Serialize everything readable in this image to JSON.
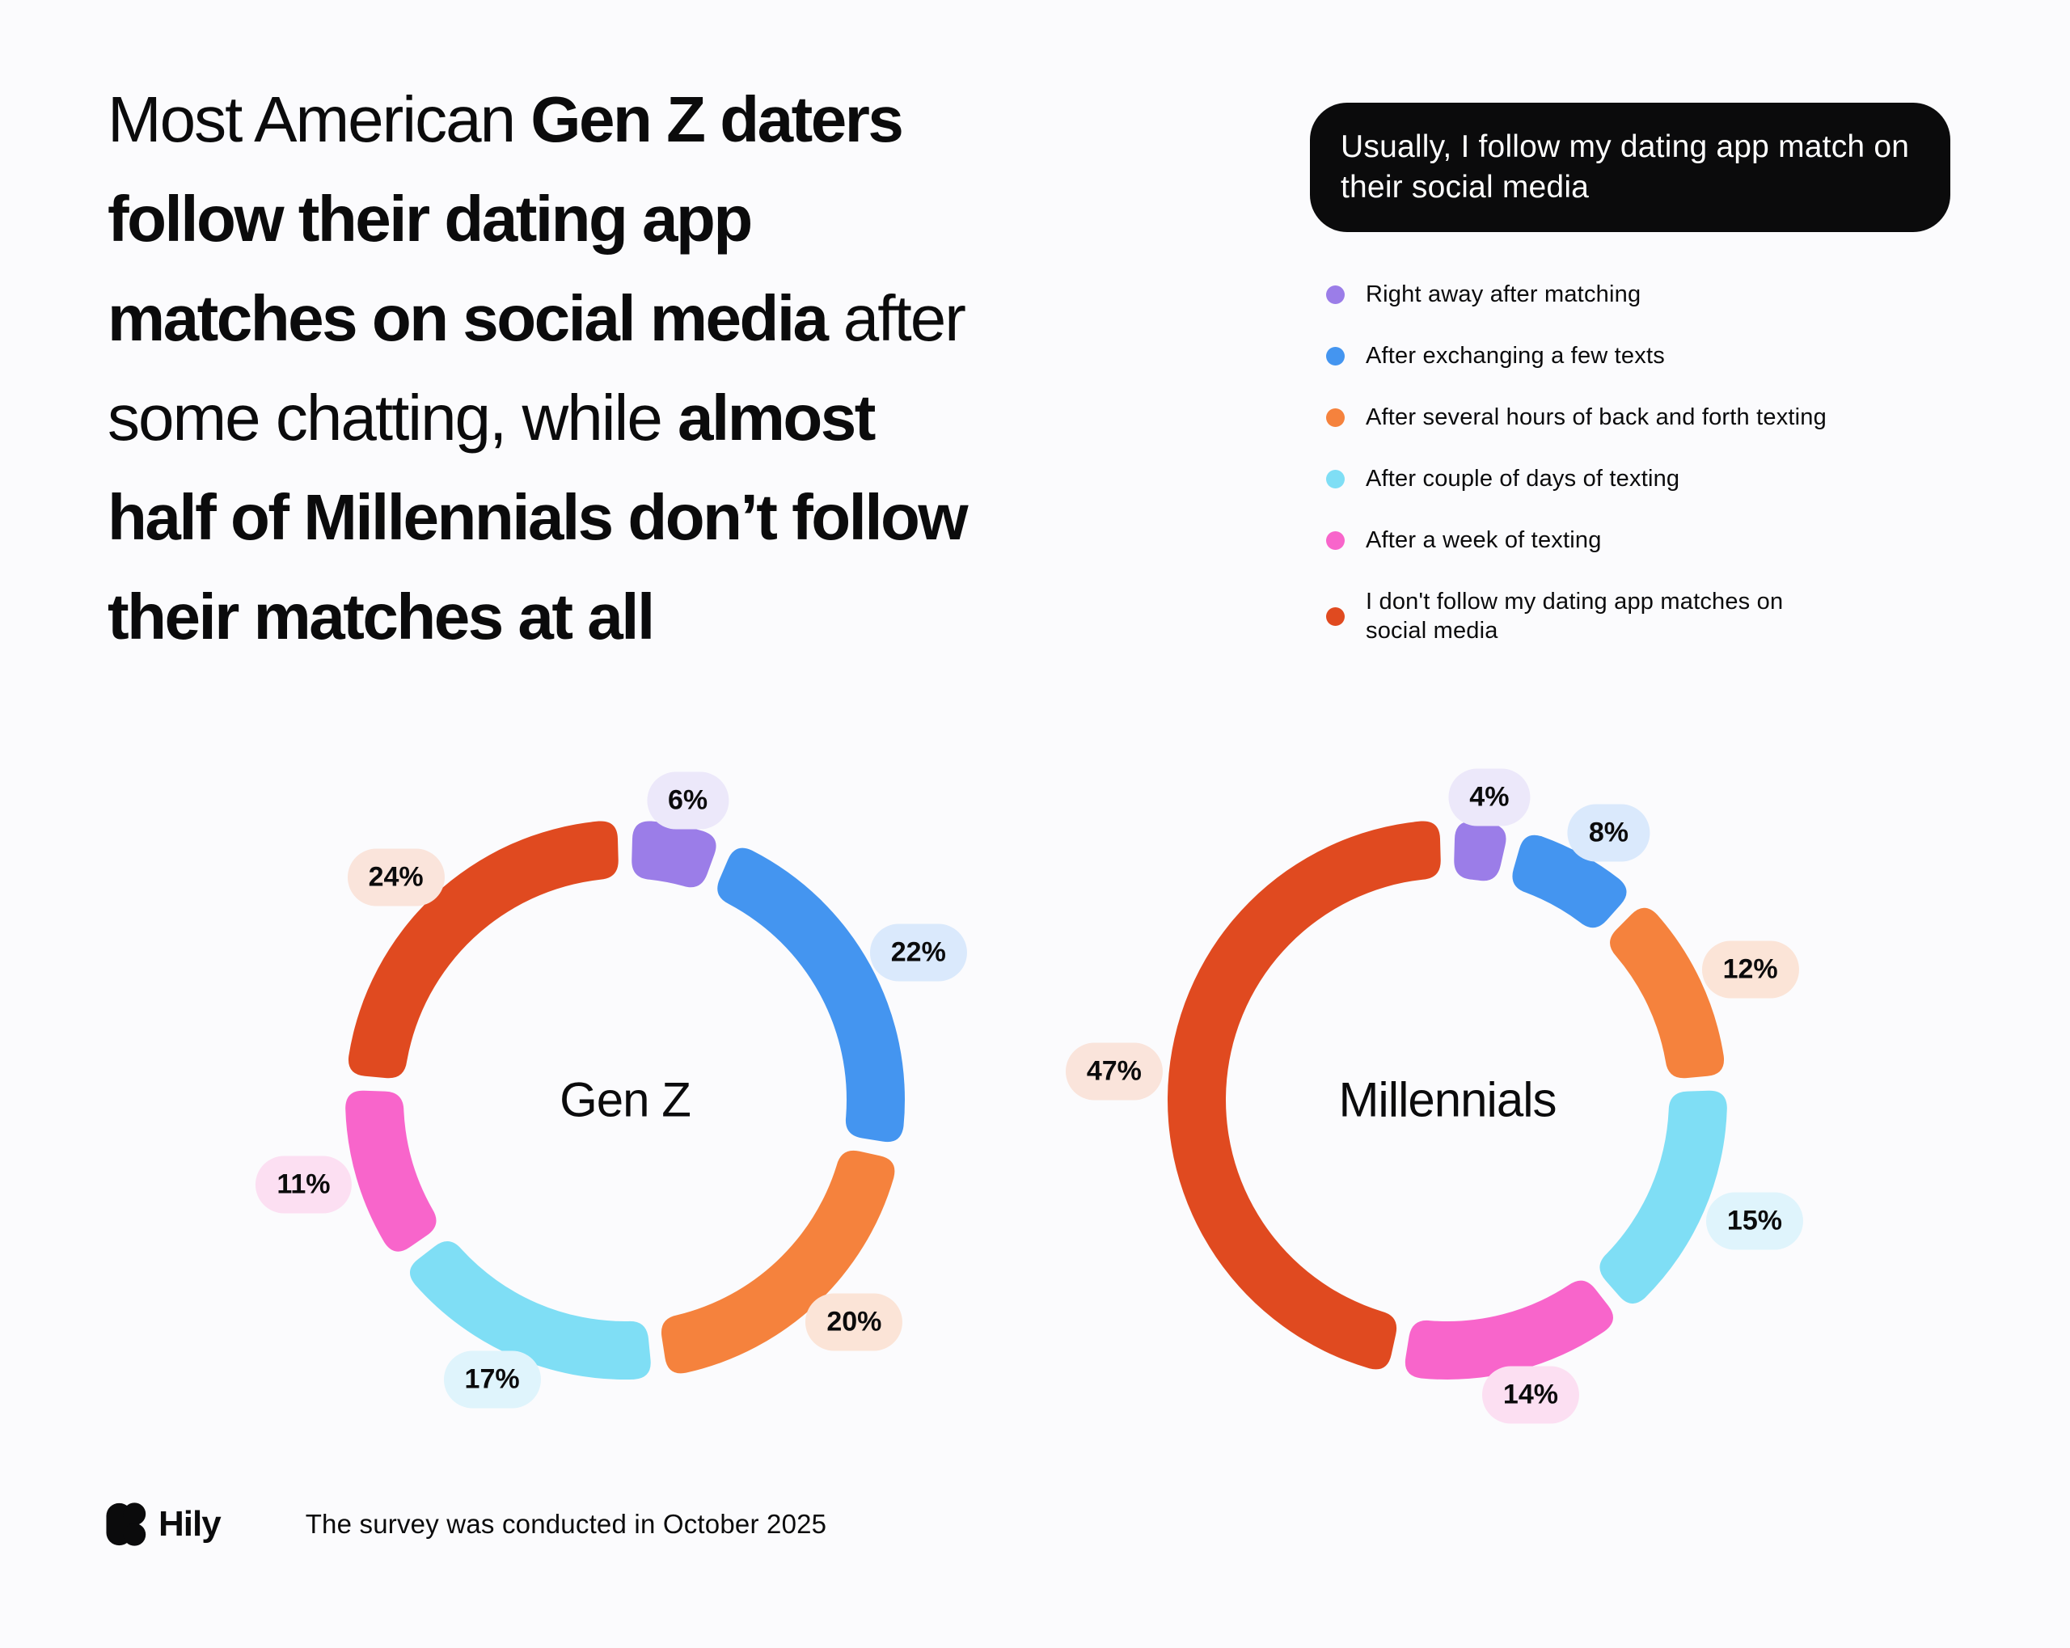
{
  "theme": {
    "background": "#FBFBFD",
    "text": "#0B0B0C",
    "legend_pill_bg": "#0B0B0C",
    "legend_pill_text": "#FFFFFF"
  },
  "headline": {
    "lines": [
      [
        {
          "t": "Most American ",
          "b": 0
        },
        {
          "t": "Gen Z daters",
          "b": 1
        }
      ],
      [
        {
          "t": "follow their dating app",
          "b": 1
        }
      ],
      [
        {
          "t": "matches on social media",
          "b": 1
        },
        {
          "t": " after",
          "b": 0
        }
      ],
      [
        {
          "t": "some chatting, while ",
          "b": 0
        },
        {
          "t": "almost",
          "b": 1
        }
      ],
      [
        {
          "t": "half of Millennials don’t follow",
          "b": 1
        }
      ],
      [
        {
          "t": "their matches at all",
          "b": 1
        }
      ]
    ]
  },
  "legend": {
    "title": "Usually, I follow my dating app match on their social media"
  },
  "chart_data": {
    "type": "donut",
    "unit": "%",
    "legend_position": "top-right",
    "value_labels": "outside",
    "categories": [
      "Right away after matching",
      "After exchanging a few texts",
      "After several hours of back and forth texting",
      "After couple of days of texting",
      "After a week of texting",
      "I don't follow my dating app matches on social media"
    ],
    "palette": [
      {
        "key": "right-away-after-matching",
        "color": "#9B7DE8",
        "tint": "#ECE8FA"
      },
      {
        "key": "after-a-few-texts",
        "color": "#4495F0",
        "tint": "#DAE9FC"
      },
      {
        "key": "after-several-hours-texting",
        "color": "#F5823D",
        "tint": "#FBE4D7"
      },
      {
        "key": "after-couple-of-days-texting",
        "color": "#7FDEF5",
        "tint": "#DFF4FC"
      },
      {
        "key": "after-a-week-of-texting",
        "color": "#F865CB",
        "tint": "#FCDFF2"
      },
      {
        "key": "dont-follow-on-social-media",
        "color": "#E04A20",
        "tint": "#FAE4DB"
      }
    ],
    "series": [
      {
        "name": "Gen Z",
        "values": [
          6,
          22,
          20,
          17,
          11,
          24
        ]
      },
      {
        "name": "Millennials",
        "values": [
          4,
          8,
          12,
          15,
          14,
          47
        ]
      }
    ]
  },
  "footer": {
    "brand": "Hily",
    "note": "The survey was conducted in October 2025"
  }
}
